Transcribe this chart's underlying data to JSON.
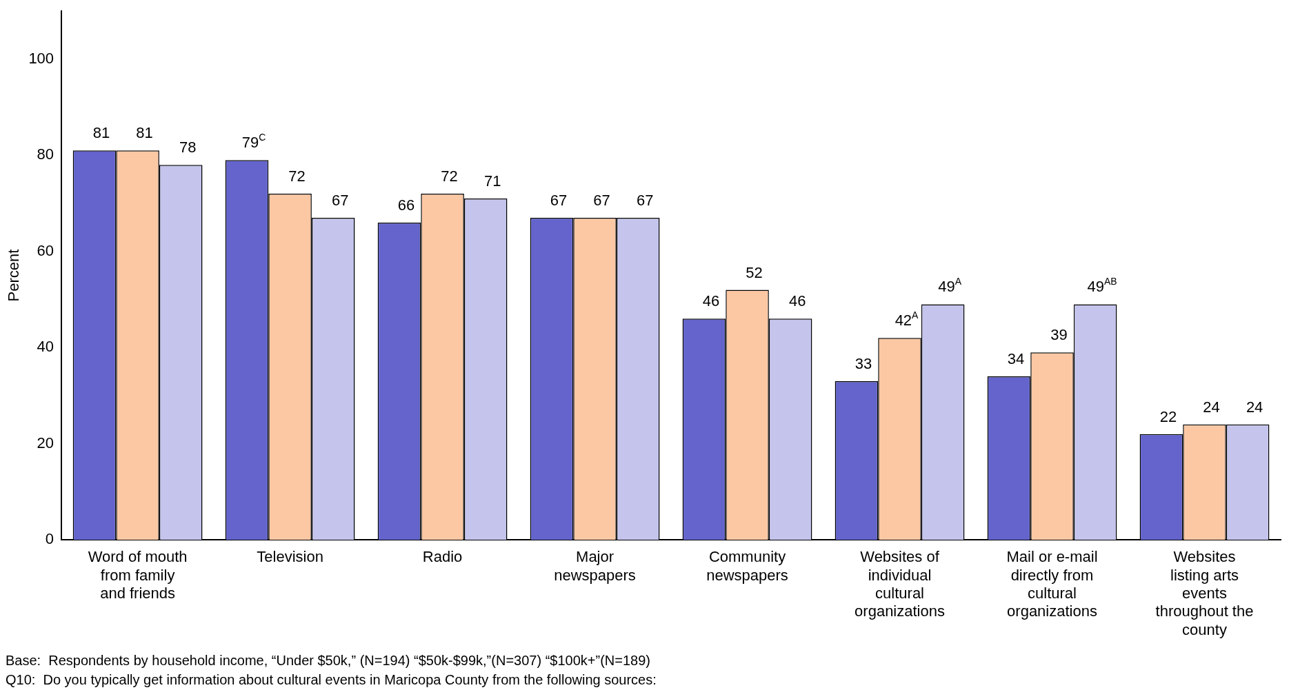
{
  "chart_data": {
    "type": "bar",
    "ylabel": "Percent",
    "categories": [
      "Word of mouth from family and friends",
      "Television",
      "Radio",
      "Major newspapers",
      "Community newspapers",
      "Websites of individual cultural organizations",
      "Mail or e-mail directly from cultural organizations",
      "Websites listing arts events throughout the county"
    ],
    "series": [
      {
        "color": "#6464cc",
        "values": [
          81,
          79,
          66,
          67,
          46,
          33,
          34,
          22
        ],
        "value_labels": [
          "81",
          "79$^{C}$",
          "66",
          "67",
          "46",
          "33",
          "34",
          "22"
        ]
      },
      {
        "color": "#fcc8a4",
        "values": [
          81,
          72,
          72,
          67,
          52,
          42,
          39,
          24
        ],
        "value_labels": [
          "81",
          "72",
          "72",
          "67",
          "52",
          "42$^{A}$",
          "39",
          "24"
        ]
      },
      {
        "color": "#c4c4ec",
        "values": [
          78,
          67,
          71,
          67,
          46,
          49,
          49,
          24
        ],
        "value_labels": [
          "78",
          "67",
          "71",
          "67",
          "46",
          "49$^{A}$",
          "49$^{AB}$",
          "24"
        ]
      }
    ],
    "ylim": [
      0,
      110
    ],
    "yticks": [
      0,
      20,
      40,
      60,
      80,
      100
    ],
    "grid": false,
    "legend": false,
    "annotations": [
      "Base:  Respondents by household income, “Under $50k,” (N=194) “$50k-$99k,”(N=307) “$100k+”(N=189)",
      "Q10:  Do you typically get information about cultural events in Maricopa County from the following sources:"
    ]
  }
}
